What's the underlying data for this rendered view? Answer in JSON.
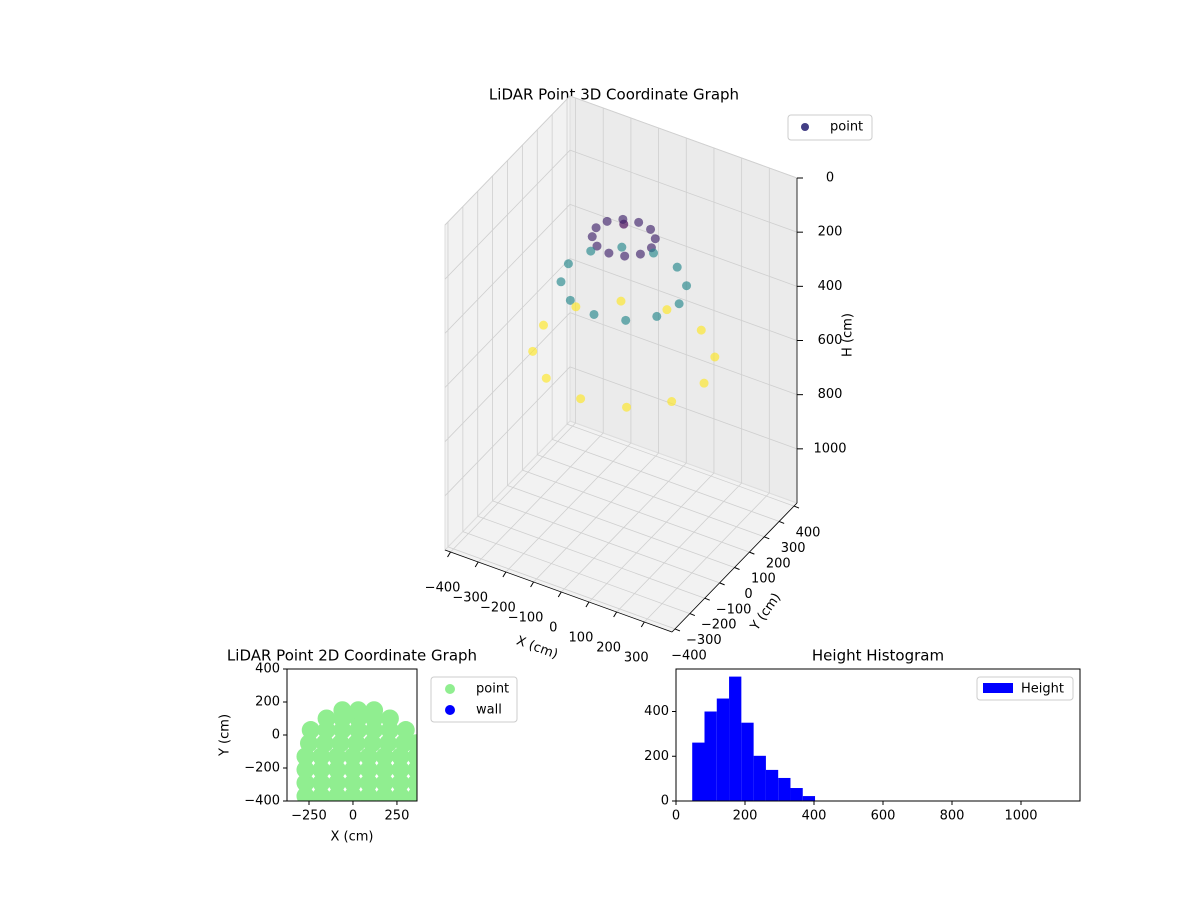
{
  "chart_data": [
    {
      "type": "scatter3d",
      "title": "LiDAR Point 3D Coordinate Graph",
      "xlabel": "X (cm)",
      "ylabel": "Y (cm)",
      "zlabel": "H (cm)",
      "xlim": [
        -420,
        400
      ],
      "ylim": [
        -420,
        420
      ],
      "zlim": [
        1200,
        0
      ],
      "xticks": [
        {
          "value": -400,
          "label": "−400"
        },
        {
          "value": -300,
          "label": "−300"
        },
        {
          "value": -200,
          "label": "−200"
        },
        {
          "value": -100,
          "label": "−100"
        },
        0,
        100,
        200,
        300
      ],
      "yticks": [
        {
          "value": -400,
          "label": "−400"
        },
        {
          "value": -300,
          "label": "−300"
        },
        {
          "value": -200,
          "label": "−200"
        },
        {
          "value": -100,
          "label": "−100"
        },
        0,
        100,
        200,
        300,
        400
      ],
      "zticks": [
        0,
        200,
        400,
        600,
        800,
        1000
      ],
      "grid": true,
      "legend": "upper right",
      "series": [
        {
          "name": "point",
          "color": "#433e85",
          "cmap": "viridis",
          "x": [
            0,
            100,
            87,
            50,
            0,
            -50,
            -87,
            -100,
            -87,
            -50,
            0,
            50,
            87,
            200,
            173,
            100,
            0,
            -100,
            -173,
            -200,
            -173,
            -100,
            0,
            100,
            173,
            290,
            251,
            145,
            0,
            -145,
            -251,
            -290,
            -251,
            -145,
            0,
            145,
            251
          ],
          "y": [
            0,
            0,
            50,
            87,
            100,
            87,
            50,
            0,
            -50,
            -87,
            -100,
            -87,
            -50,
            0,
            100,
            173,
            200,
            173,
            100,
            0,
            -100,
            -173,
            -200,
            -173,
            -100,
            0,
            145,
            251,
            290,
            251,
            145,
            0,
            -145,
            -251,
            -290,
            -251,
            -145
          ],
          "z": [
            80,
            130,
            130,
            130,
            130,
            130,
            130,
            130,
            130,
            130,
            130,
            130,
            130,
            300,
            300,
            300,
            300,
            300,
            300,
            300,
            300,
            300,
            300,
            300,
            300,
            560,
            560,
            560,
            560,
            560,
            560,
            560,
            560,
            560,
            560,
            560,
            560
          ]
        }
      ]
    },
    {
      "type": "scatter",
      "title": "LiDAR Point 2D Coordinate Graph",
      "xlabel": "X (cm)",
      "ylabel": "Y (cm)",
      "xlim": [
        -375,
        364
      ],
      "ylim": [
        -400,
        400
      ],
      "xticks": [
        {
          "value": -250,
          "label": "−250"
        },
        0,
        250
      ],
      "yticks": [
        {
          "value": -400,
          "label": "−400"
        },
        {
          "value": -200,
          "label": "−200"
        },
        0,
        200,
        400
      ],
      "legend": "outside right",
      "series": [
        {
          "name": "point",
          "color": "#90ee90",
          "x": [
            -270,
            -180,
            -90,
            0,
            90,
            180,
            270,
            360,
            -270,
            -180,
            -90,
            0,
            90,
            180,
            270,
            360,
            -270,
            -180,
            -90,
            0,
            90,
            180,
            270,
            360,
            -270,
            -180,
            -90,
            0,
            90,
            180,
            270,
            360,
            -250,
            -160,
            -70,
            20,
            110,
            200,
            290,
            360,
            -240,
            -150,
            -60,
            30,
            120,
            210,
            300,
            -150,
            -60,
            30,
            120,
            210,
            -60,
            30,
            120
          ],
          "y": [
            -370,
            -370,
            -370,
            -370,
            -370,
            -370,
            -370,
            -370,
            -290,
            -290,
            -290,
            -290,
            -290,
            -290,
            -290,
            -290,
            -210,
            -210,
            -210,
            -210,
            -210,
            -210,
            -210,
            -210,
            -130,
            -130,
            -130,
            -130,
            -130,
            -130,
            -130,
            -130,
            -50,
            -50,
            -50,
            -50,
            -50,
            -50,
            -50,
            -50,
            30,
            30,
            30,
            30,
            30,
            30,
            30,
            100,
            100,
            100,
            100,
            100,
            150,
            150,
            150
          ]
        },
        {
          "name": "wall",
          "color": "#0000ff",
          "x": [],
          "y": []
        }
      ]
    },
    {
      "type": "histogram",
      "title": "Height Histogram",
      "xlim": [
        0,
        1171
      ],
      "ylim": [
        0,
        590
      ],
      "xticks": [
        0,
        200,
        400,
        600,
        800,
        1000
      ],
      "yticks": [
        0,
        200,
        400
      ],
      "legend": "upper right",
      "series": [
        {
          "name": "Height",
          "color": "#0000ff",
          "bins": [
            47,
            82.6,
            118.2,
            153.8,
            189.4,
            225,
            260.6,
            296.2,
            331.8,
            367.4,
            403
          ],
          "counts": [
            261,
            400,
            458,
            556,
            350,
            202,
            139,
            103,
            58,
            22
          ]
        }
      ]
    }
  ]
}
